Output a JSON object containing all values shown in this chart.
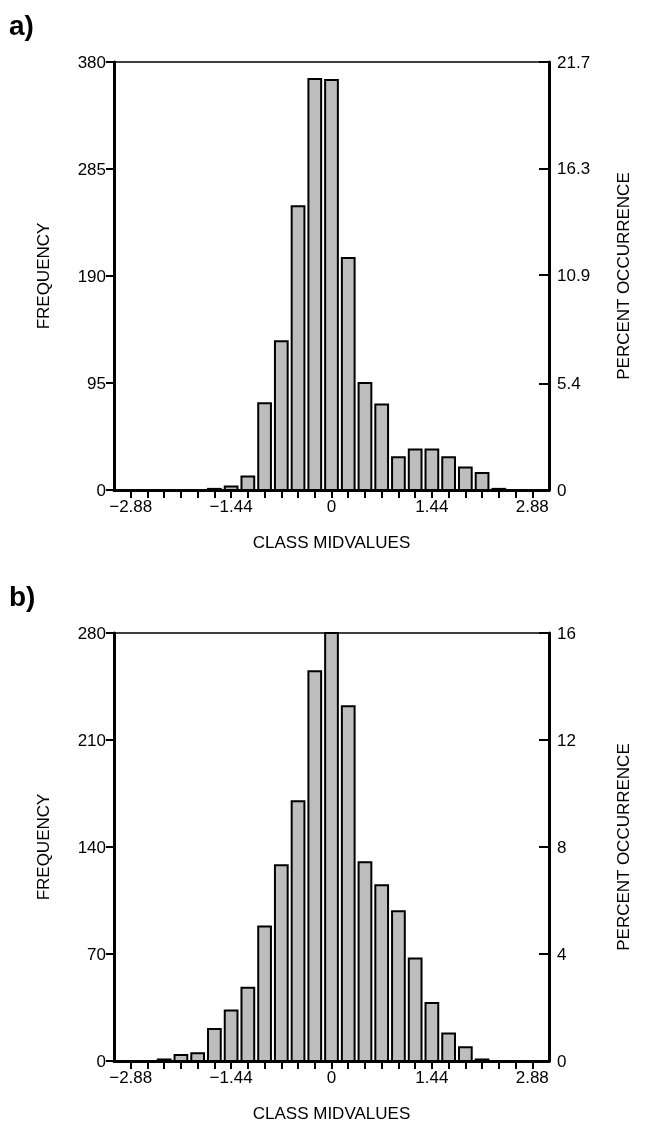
{
  "chart_data": [
    {
      "type": "histogram",
      "title": "a)",
      "xlabel": "CLASS MIDVALUES",
      "ylabel": "FREQUENCY",
      "y2label": "PERCENT OCCURRENCE",
      "color": "#bdbdbd",
      "bins": [
        -3.0,
        -2.76,
        -2.52,
        -2.28,
        -2.04,
        -1.8,
        -1.56,
        -1.32,
        -1.08,
        -0.84,
        -0.6,
        -0.36,
        -0.12,
        0.12,
        0.36,
        0.6,
        0.84,
        1.08,
        1.32,
        1.56,
        1.8,
        2.04,
        2.28,
        2.52,
        2.76,
        3.0
      ],
      "values": [
        0,
        0,
        0,
        0,
        0,
        1,
        3,
        12,
        77,
        132,
        252,
        365,
        364,
        206,
        95,
        76,
        29,
        36,
        36,
        29,
        20,
        15,
        1,
        0,
        0
      ],
      "xlim": [
        -3.12,
        3.12
      ],
      "xticks": [
        -2.88,
        {
          "value": -2.64,
          "label": null
        },
        {
          "value": -2.4,
          "label": null
        },
        {
          "value": -2.16,
          "label": null
        },
        {
          "value": -1.92,
          "label": null
        },
        {
          "value": -1.68,
          "label": null
        },
        -1.44,
        {
          "value": -1.2,
          "label": null
        },
        {
          "value": -0.96,
          "label": null
        },
        {
          "value": -0.72,
          "label": null
        },
        {
          "value": -0.48,
          "label": null
        },
        {
          "value": -0.24,
          "label": null
        },
        0,
        {
          "value": 0.24,
          "label": null
        },
        {
          "value": 0.48,
          "label": null
        },
        {
          "value": 0.72,
          "label": null
        },
        {
          "value": 0.96,
          "label": null
        },
        {
          "value": 1.2,
          "label": null
        },
        1.44,
        {
          "value": 1.68,
          "label": null
        },
        {
          "value": 1.92,
          "label": null
        },
        {
          "value": 2.16,
          "label": null
        },
        {
          "value": 2.4,
          "label": null
        },
        {
          "value": 2.64,
          "label": null
        },
        2.88
      ],
      "ylim": [
        0,
        380
      ],
      "yticks": [
        0,
        95,
        190,
        285,
        380
      ],
      "y2lim": [
        0,
        21.7
      ],
      "y2ticks": [
        0,
        5.4,
        10.9,
        16.3,
        21.7
      ]
    },
    {
      "type": "histogram",
      "title": "b)",
      "xlabel": "CLASS MIDVALUES",
      "ylabel": "FREQUENCY",
      "y2label": "PERCENT OCCURRENCE",
      "color": "#bdbdbd",
      "bins": [
        -3.0,
        -2.76,
        -2.52,
        -2.28,
        -2.04,
        -1.8,
        -1.56,
        -1.32,
        -1.08,
        -0.84,
        -0.6,
        -0.36,
        -0.12,
        0.12,
        0.36,
        0.6,
        0.84,
        1.08,
        1.32,
        1.56,
        1.8,
        2.04,
        2.28,
        2.52,
        2.76,
        3.0
      ],
      "values": [
        0,
        0,
        1,
        4,
        5,
        21,
        33,
        48,
        88,
        128,
        170,
        255,
        280,
        232,
        130,
        115,
        98,
        67,
        38,
        18,
        9,
        1,
        0,
        0,
        0
      ],
      "xlim": [
        -3.12,
        3.12
      ],
      "xticks": [
        -2.88,
        {
          "value": -2.64,
          "label": null
        },
        {
          "value": -2.4,
          "label": null
        },
        {
          "value": -2.16,
          "label": null
        },
        {
          "value": -1.92,
          "label": null
        },
        {
          "value": -1.68,
          "label": null
        },
        -1.44,
        {
          "value": -1.2,
          "label": null
        },
        {
          "value": -0.96,
          "label": null
        },
        {
          "value": -0.72,
          "label": null
        },
        {
          "value": -0.48,
          "label": null
        },
        {
          "value": -0.24,
          "label": null
        },
        0,
        {
          "value": 0.24,
          "label": null
        },
        {
          "value": 0.48,
          "label": null
        },
        {
          "value": 0.72,
          "label": null
        },
        {
          "value": 0.96,
          "label": null
        },
        {
          "value": 1.2,
          "label": null
        },
        1.44,
        {
          "value": 1.68,
          "label": null
        },
        {
          "value": 1.92,
          "label": null
        },
        {
          "value": 2.16,
          "label": null
        },
        {
          "value": 2.4,
          "label": null
        },
        {
          "value": 2.64,
          "label": null
        },
        2.88
      ],
      "ylim": [
        0,
        280
      ],
      "yticks": [
        0,
        70,
        140,
        210,
        280
      ],
      "y2lim": [
        0,
        16
      ],
      "y2ticks": [
        0,
        4,
        8,
        12,
        16
      ]
    }
  ]
}
